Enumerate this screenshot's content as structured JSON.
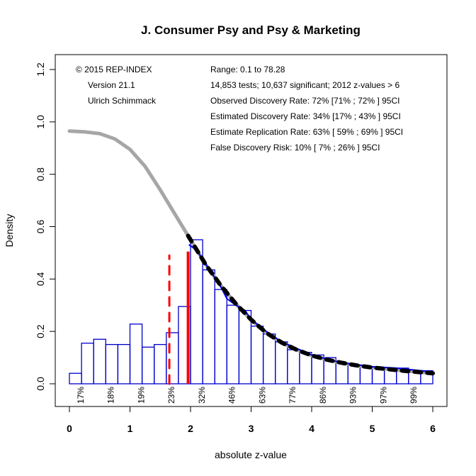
{
  "chart_data": {
    "type": "bar",
    "title": "J. Consumer Psy and Psy & Marketing",
    "xlabel": "absolute z-value",
    "ylabel": "Density",
    "xlim": [
      0,
      6
    ],
    "ylim": [
      0,
      1.2
    ],
    "x_ticks": [
      "0",
      "1",
      "2",
      "3",
      "4",
      "5",
      "6"
    ],
    "y_ticks": [
      "0.0",
      "0.2",
      "0.4",
      "0.6",
      "0.8",
      "1.0",
      "1.2"
    ],
    "grid": false,
    "histogram": {
      "bin_width": 0.2,
      "bin_starts": [
        0.0,
        0.2,
        0.4,
        0.6,
        0.8,
        1.0,
        1.2,
        1.4,
        1.6,
        1.8,
        2.0,
        2.2,
        2.4,
        2.6,
        2.8,
        3.0,
        3.2,
        3.4,
        3.6,
        3.8,
        4.0,
        4.2,
        4.4,
        4.6,
        4.8,
        5.0,
        5.2,
        5.4,
        5.6,
        5.8
      ],
      "values": [
        0.04,
        0.155,
        0.17,
        0.15,
        0.15,
        0.228,
        0.14,
        0.15,
        0.195,
        0.295,
        0.55,
        0.435,
        0.36,
        0.3,
        0.28,
        0.22,
        0.19,
        0.16,
        0.13,
        0.12,
        0.11,
        0.1,
        0.08,
        0.07,
        0.065,
        0.06,
        0.06,
        0.06,
        0.05,
        0.05
      ],
      "color": "#0000cd"
    },
    "series": [
      {
        "name": "model density (full range)",
        "style": "solid-gray-thick",
        "color": "#a6a6a6",
        "x": [
          0.0,
          0.25,
          0.5,
          0.75,
          1.0,
          1.25,
          1.5,
          1.75,
          2.0,
          2.25,
          2.5,
          2.75,
          3.0,
          3.25,
          3.5,
          3.75,
          4.0,
          4.25,
          4.5,
          4.75,
          5.0,
          5.25,
          5.5,
          5.75,
          6.0
        ],
        "y": [
          0.965,
          0.962,
          0.955,
          0.935,
          0.895,
          0.83,
          0.74,
          0.645,
          0.55,
          0.455,
          0.375,
          0.305,
          0.245,
          0.195,
          0.158,
          0.13,
          0.108,
          0.092,
          0.08,
          0.07,
          0.062,
          0.056,
          0.05,
          0.045,
          0.04
        ]
      },
      {
        "name": "fitted density (significant range)",
        "style": "dashed-black-thick",
        "color": "#000000",
        "x": [
          1.96,
          2.25,
          2.5,
          2.75,
          3.0,
          3.25,
          3.5,
          3.75,
          4.0,
          4.25,
          4.5,
          4.75,
          5.0,
          5.25,
          5.5,
          5.75,
          6.0
        ],
        "y": [
          0.565,
          0.455,
          0.375,
          0.305,
          0.245,
          0.195,
          0.158,
          0.13,
          0.108,
          0.092,
          0.08,
          0.07,
          0.062,
          0.056,
          0.05,
          0.045,
          0.04
        ]
      },
      {
        "name": "kernel density of observed z",
        "style": "solid-blue",
        "color": "#0000ff",
        "x": [
          1.98,
          2.1,
          2.3,
          2.5,
          2.6,
          2.75,
          2.9,
          3.0,
          3.25,
          3.5,
          4.0,
          4.5,
          5.0,
          5.4,
          5.6,
          5.8,
          6.0
        ],
        "y": [
          0.53,
          0.51,
          0.44,
          0.37,
          0.325,
          0.3,
          0.28,
          0.245,
          0.2,
          0.16,
          0.11,
          0.08,
          0.065,
          0.06,
          0.055,
          0.05,
          0.045
        ]
      }
    ],
    "vertical_lines": [
      {
        "name": "significance criterion",
        "x": 1.96,
        "y_top": 0.505,
        "style": "solid",
        "color": "#ff0000"
      },
      {
        "name": "selection threshold",
        "x": 1.65,
        "y_top": 0.49,
        "style": "dashed",
        "color": "#ff0000"
      }
    ],
    "power_labels": {
      "x": [
        0.15,
        0.65,
        1.15,
        1.65,
        2.15,
        2.65,
        3.15,
        3.65,
        4.15,
        4.65,
        5.15,
        5.65
      ],
      "labels": [
        "17%",
        "18%",
        "19%",
        "23%",
        "32%",
        "46%",
        "63%",
        "77%",
        "86%",
        "93%",
        "97%",
        "99%"
      ]
    },
    "annotations_left": [
      "© 2015 REP-INDEX",
      "Version 21.1",
      "Ulrich Schimmack"
    ],
    "annotations_right": [
      "Range: 0.1 to 78.28",
      "14,853 tests; 10,637 significant; 2012 z-values > 6",
      "Observed Discovery Rate: 72% [71% ; 72% ] 95CI",
      "Estimated Discovery Rate: 34% [17% ; 43% ] 95CI",
      "Estimate Replication Rate: 63% [ 59% ; 69% ] 95CI",
      "False Discovery Risk: 10% [ 7% ; 26% ] 95CI"
    ]
  }
}
